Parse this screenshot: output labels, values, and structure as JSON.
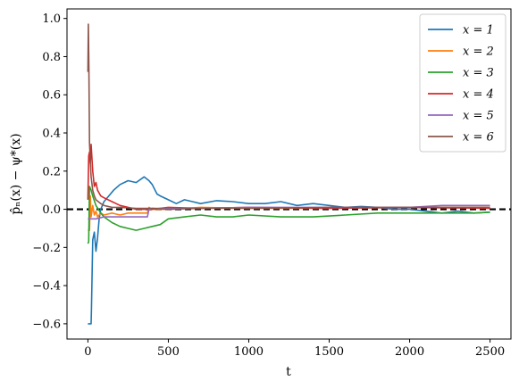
{
  "chart_data": {
    "type": "line",
    "xlabel": "t",
    "ylabel": "p̂ₙ(x) − ψ*(x)",
    "xlim": [
      -130,
      2630
    ],
    "ylim": [
      -0.68,
      1.05
    ],
    "xticks": [
      0,
      500,
      1000,
      1500,
      2000,
      2500
    ],
    "yticks": [
      -0.6,
      -0.4,
      -0.2,
      0.0,
      0.2,
      0.4,
      0.6,
      0.8,
      1.0
    ],
    "ytick_labels": [
      "−0.6",
      "−0.4",
      "−0.2",
      "0.0",
      "0.2",
      "0.4",
      "0.6",
      "0.8",
      "1.0"
    ],
    "reference_line": {
      "y": 0,
      "style": "dashed",
      "color": "#000000"
    },
    "legend_position": "top-right",
    "series": [
      {
        "name": "x = 1",
        "color": "#1f77b4",
        "x": [
          0,
          20,
          22,
          30,
          40,
          50,
          60,
          70,
          80,
          100,
          130,
          160,
          200,
          250,
          300,
          350,
          380,
          400,
          430,
          450,
          500,
          550,
          600,
          650,
          700,
          800,
          900,
          1000,
          1100,
          1200,
          1300,
          1400,
          1500,
          1600,
          1700,
          1800,
          1900,
          2000,
          2100,
          2200,
          2300,
          2400,
          2500
        ],
        "y": [
          -0.6,
          -0.6,
          -0.52,
          -0.16,
          -0.12,
          -0.22,
          -0.15,
          -0.05,
          0.0,
          0.04,
          0.07,
          0.1,
          0.13,
          0.15,
          0.14,
          0.17,
          0.15,
          0.13,
          0.08,
          0.07,
          0.05,
          0.03,
          0.05,
          0.04,
          0.03,
          0.045,
          0.04,
          0.03,
          0.03,
          0.04,
          0.02,
          0.03,
          0.02,
          0.01,
          0.015,
          0.01,
          0.0,
          0.0,
          -0.01,
          -0.02,
          -0.01,
          -0.02,
          -0.015
        ]
      },
      {
        "name": "x = 2",
        "color": "#ff7f0e",
        "x": [
          0,
          10,
          15,
          20,
          30,
          40,
          50,
          60,
          80,
          100,
          150,
          200,
          250,
          300,
          370,
          380,
          400,
          500,
          700,
          1000,
          1500,
          2000,
          2500
        ],
        "y": [
          -0.11,
          -0.11,
          0.07,
          -0.04,
          0.02,
          -0.03,
          -0.01,
          -0.04,
          -0.02,
          -0.03,
          -0.02,
          -0.03,
          -0.02,
          -0.02,
          -0.02,
          0.01,
          0.0,
          0.0,
          0.01,
          0.005,
          0.005,
          0.01,
          0.01
        ]
      },
      {
        "name": "x = 3",
        "color": "#2ca02c",
        "x": [
          0,
          5,
          10,
          20,
          30,
          50,
          80,
          100,
          150,
          200,
          250,
          300,
          350,
          400,
          450,
          500,
          600,
          700,
          800,
          900,
          1000,
          1200,
          1400,
          1600,
          1800,
          2000,
          2200,
          2400,
          2500
        ],
        "y": [
          -0.18,
          -0.17,
          0.12,
          0.1,
          0.07,
          0.02,
          -0.02,
          -0.04,
          -0.07,
          -0.09,
          -0.1,
          -0.11,
          -0.1,
          -0.09,
          -0.08,
          -0.05,
          -0.04,
          -0.03,
          -0.04,
          -0.04,
          -0.03,
          -0.04,
          -0.04,
          -0.03,
          -0.02,
          -0.02,
          -0.02,
          -0.02,
          -0.015
        ]
      },
      {
        "name": "x = 4",
        "color": "#d62728",
        "x": [
          0,
          5,
          10,
          15,
          20,
          30,
          40,
          50,
          60,
          80,
          100,
          150,
          200,
          250,
          300,
          400,
          500,
          700,
          1000,
          1500,
          2000,
          2500
        ],
        "y": [
          0.05,
          0.28,
          0.3,
          0.24,
          0.34,
          0.2,
          0.12,
          0.14,
          0.1,
          0.07,
          0.06,
          0.04,
          0.02,
          0.01,
          0.0,
          0.0,
          0.01,
          0.005,
          0.01,
          0.005,
          0.01,
          0.005
        ]
      },
      {
        "name": "x = 5",
        "color": "#9467bd",
        "x": [
          0,
          50,
          100,
          150,
          200,
          250,
          300,
          370,
          380,
          400,
          500,
          700,
          1000,
          1500,
          2000,
          2200,
          2500
        ],
        "y": [
          -0.05,
          -0.05,
          -0.04,
          -0.04,
          -0.04,
          -0.04,
          -0.04,
          -0.04,
          0.0,
          0.005,
          0.005,
          0.005,
          0.01,
          0.01,
          0.01,
          0.02,
          0.02
        ]
      },
      {
        "name": "x = 6",
        "color": "#8c564b",
        "x": [
          0,
          3,
          6,
          10,
          15,
          20,
          30,
          40,
          50,
          80,
          100,
          150,
          200,
          300,
          400,
          500,
          700,
          1000,
          1500,
          2000,
          2500
        ],
        "y": [
          0.72,
          0.97,
          0.75,
          0.35,
          0.25,
          0.17,
          0.1,
          0.07,
          0.05,
          0.03,
          0.02,
          0.01,
          0.01,
          0.005,
          0.005,
          0.0,
          0.005,
          0.005,
          0.01,
          0.01,
          0.01
        ]
      }
    ]
  }
}
